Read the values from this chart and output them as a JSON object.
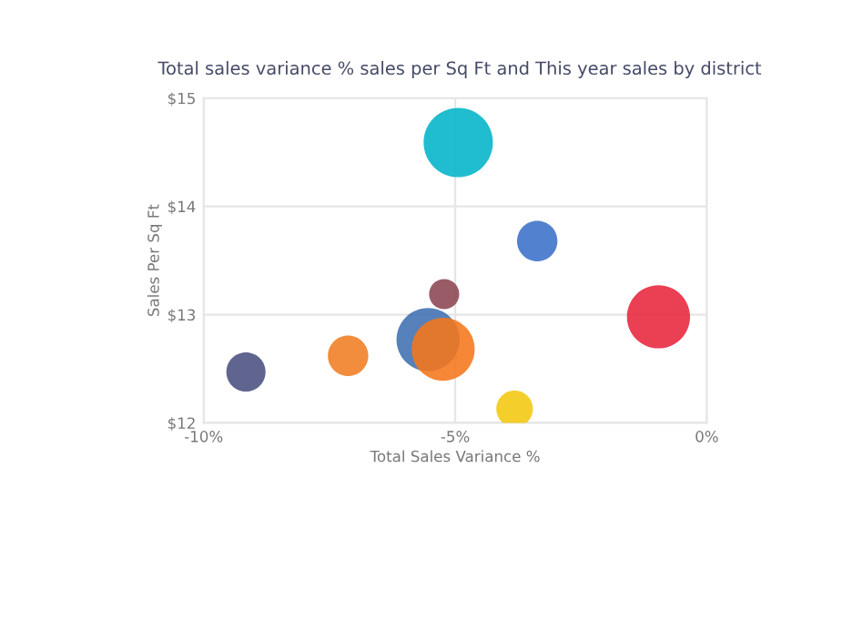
{
  "chart_data": {
    "type": "bubble",
    "title": "Total sales variance % sales per Sq Ft and This year sales by district",
    "xlabel": "Total Sales Variance %",
    "ylabel": "Sales Per Sq Ft",
    "x": [
      -4.94,
      -3.37,
      -5.22,
      -0.96,
      -5.54,
      -5.24,
      -7.13,
      -9.16,
      -3.82
    ],
    "values": [
      14.59,
      13.68,
      13.19,
      12.98,
      12.77,
      12.68,
      12.62,
      12.47,
      12.13
    ],
    "sizes": [
      1,
      0.34,
      0.19,
      0.83,
      0.83,
      0.83,
      0.34,
      0.32,
      0.28
    ],
    "colors": [
      "#00b4c8",
      "#3a70c8",
      "#8b4552",
      "#e8243c",
      "#3f6fb0",
      "#f5761a",
      "#ef7d22",
      "#4a5080",
      "#f2c80f"
    ],
    "xlim": [
      -10,
      0
    ],
    "xticks": [
      {
        "value": -10,
        "label": "-10%"
      },
      {
        "value": -5,
        "label": "-5%"
      },
      {
        "value": 0,
        "label": "0%"
      }
    ],
    "ylim": [
      12,
      15
    ],
    "yticks": [
      {
        "value": 12,
        "label": "$12"
      },
      {
        "value": 13,
        "label": "$13"
      },
      {
        "value": 14,
        "label": "$14"
      },
      {
        "value": 15,
        "label": "$15"
      }
    ],
    "grid": true,
    "legend": false
  }
}
